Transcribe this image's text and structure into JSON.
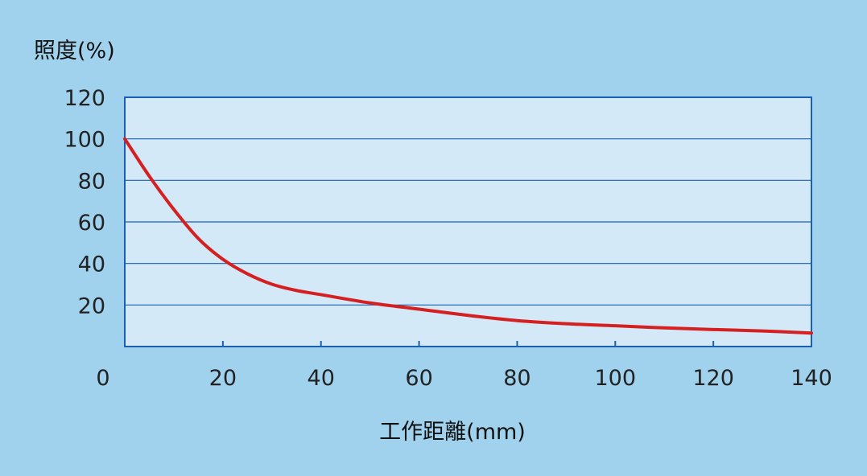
{
  "chart_data": {
    "type": "line",
    "ylabel": "照度(%)",
    "xlabel": "工作距離(mm)",
    "xlim": [
      0,
      140
    ],
    "ylim": [
      0,
      120
    ],
    "x_ticks": [
      "0",
      "20",
      "40",
      "60",
      "80",
      "100",
      "120",
      "140"
    ],
    "y_ticks": [
      "20",
      "40",
      "60",
      "80",
      "100",
      "120"
    ],
    "grid": true,
    "colors": {
      "background": "#a0d2ee",
      "plot_area": "#d3e9f7",
      "grid": "#1a5fb5",
      "line": "#d42020"
    },
    "series": [
      {
        "x": [
          0,
          5,
          10,
          15,
          20,
          25,
          30,
          35,
          40,
          50,
          60,
          70,
          80,
          90,
          100,
          110,
          120,
          130,
          140
        ],
        "values": [
          100,
          82,
          66,
          52,
          42,
          35,
          30,
          27,
          25,
          21,
          18,
          15,
          12.5,
          11,
          10,
          9,
          8.2,
          7.5,
          6.5
        ]
      }
    ]
  }
}
